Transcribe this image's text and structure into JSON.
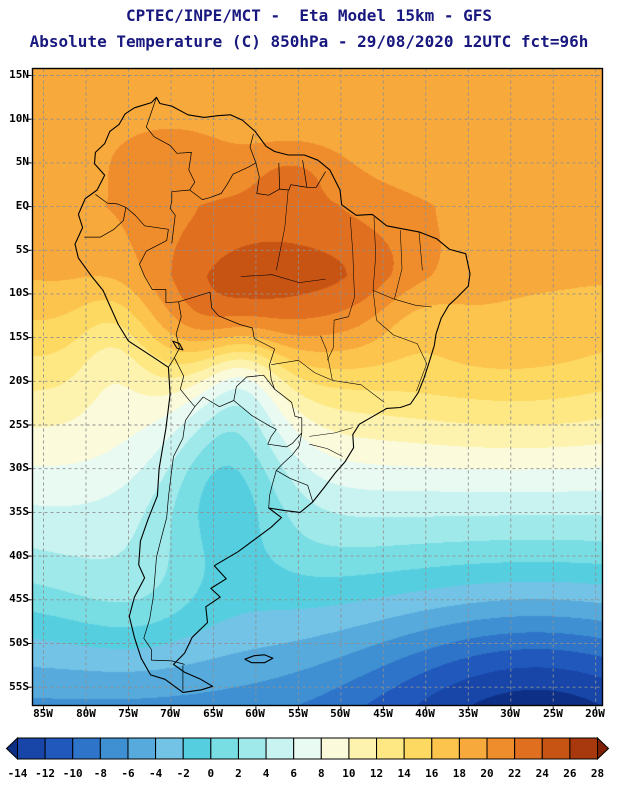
{
  "header": {
    "title_line1": "CPTEC/INPE/MCT -  Eta Model 15km - GFS",
    "title_line2": "Absolute Temperature (C) 850hPa - 29/08/2020 12UTC fct=96h",
    "title_color": "#18187e"
  },
  "map": {
    "lat_labels": [
      "15N",
      "10N",
      "5N",
      "EQ",
      "5S",
      "10S",
      "15S",
      "20S",
      "25S",
      "30S",
      "35S",
      "40S",
      "45S",
      "50S",
      "55S"
    ],
    "lat_values": [
      15,
      10,
      5,
      0,
      -5,
      -10,
      -15,
      -20,
      -25,
      -30,
      -35,
      -40,
      -45,
      -50,
      -55
    ],
    "lon_labels": [
      "85W",
      "80W",
      "75W",
      "70W",
      "65W",
      "60W",
      "55W",
      "50W",
      "45W",
      "40W",
      "35W",
      "30W",
      "25W",
      "20W"
    ],
    "lon_values": [
      -85,
      -80,
      -75,
      -70,
      -65,
      -60,
      -55,
      -50,
      -45,
      -40,
      -35,
      -30,
      -25,
      -20
    ],
    "extent": {
      "lon_min": -86.3,
      "lon_max": -19.2,
      "lat_min": -57.1,
      "lat_max": 15.8
    },
    "grid_step_deg": 5
  },
  "colorbar": {
    "tick_labels": [
      "-14",
      "-12",
      "-10",
      "-8",
      "-6",
      "-4",
      "-2",
      "0",
      "2",
      "4",
      "6",
      "8",
      "10",
      "12",
      "14",
      "16",
      "18",
      "20",
      "22",
      "24",
      "26",
      "28"
    ],
    "cell_colors": [
      "#1746a8",
      "#2058bc",
      "#2e74c8",
      "#3f90d2",
      "#56aadc",
      "#73c3e6",
      "#55cfdf",
      "#79dde4",
      "#a0e9ea",
      "#c8f3f0",
      "#e9faf2",
      "#fbfbdc",
      "#fdf3ae",
      "#fde884",
      "#fdd962",
      "#fcc44c",
      "#f8a93c",
      "#ef8d2c",
      "#e06f1f",
      "#c85414",
      "#a8380d"
    ],
    "under_color": "#0d2f85",
    "over_color": "#7d2005",
    "units": "C"
  },
  "chart_data": {
    "type": "filled-contour-map",
    "variable": "Absolute Temperature",
    "units": "C",
    "level": "850hPa",
    "model": "Eta Model 15km - GFS",
    "valid": "29/08/2020 12UTC",
    "forecast": "fct=96h",
    "contour_interval": 2,
    "range": [
      -14,
      28
    ],
    "region": "South America",
    "features": [
      "Warm air 20-26C over central Brazil, Bolivia and the Amazon basin",
      "Orange band 18-20C over the tropical Atlantic and Caribbean",
      "Pale cool tongue 2-8C extending north through Argentina and Paraguay",
      "Cyan air mass -2 to 6C over Patagonia and the southern oceans",
      "Deep cold -8 to -14C over the far South Atlantic (darkest in SE corner)"
    ],
    "field_model": {
      "base_lat_points": [
        [
          15.8,
          18.2
        ],
        [
          5,
          18.8
        ],
        [
          0,
          19.2
        ],
        [
          -8,
          17.9
        ],
        [
          -15,
          15.0
        ],
        [
          -20,
          12.5
        ],
        [
          -28,
          8.5
        ],
        [
          -35,
          4.5
        ],
        [
          -45,
          -0.5
        ],
        [
          -50,
          -3.0
        ],
        [
          -57.1,
          -6.5
        ]
      ],
      "blobs": [
        {
          "lon": -59,
          "lat": -9,
          "sx": 11,
          "sy": 7.5,
          "a": 6.5
        },
        {
          "lon": -63.5,
          "lat": -13.5,
          "sx": 5,
          "sy": 4,
          "a": 3.0
        },
        {
          "lon": -70.5,
          "lat": 5.5,
          "sx": 5,
          "sy": 3,
          "a": 2.2
        },
        {
          "lon": -55.5,
          "lat": 4.0,
          "sx": 4,
          "sy": 2.5,
          "a": 2.0
        },
        {
          "lon": -46,
          "lat": -9,
          "sx": 6,
          "sy": 5,
          "a": 2.0
        },
        {
          "lon": -29,
          "lat": -20,
          "sx": 13,
          "sy": 6.5,
          "a": 2.8
        },
        {
          "lon": -63.5,
          "lat": -29,
          "sx": 5.5,
          "sy": 8,
          "a": -7.5
        },
        {
          "lon": -61.5,
          "lat": -19,
          "sx": 3.2,
          "sy": 4.5,
          "a": -4.5
        },
        {
          "lon": -27,
          "lat": -57,
          "sx": 15,
          "sy": 9,
          "a": -8.5
        },
        {
          "lon": -74,
          "lat": -45,
          "sx": 6,
          "sy": 5,
          "a": 2.2
        },
        {
          "lon": -84,
          "lat": -40,
          "sx": 8,
          "sy": 7,
          "a": 1.5
        },
        {
          "lon": -76.5,
          "lat": -16,
          "sx": 3.5,
          "sy": 6,
          "a": -3.5
        },
        {
          "lon": -41.5,
          "lat": -13,
          "sx": 4,
          "sy": 3.5,
          "a": -2.0
        }
      ]
    }
  }
}
